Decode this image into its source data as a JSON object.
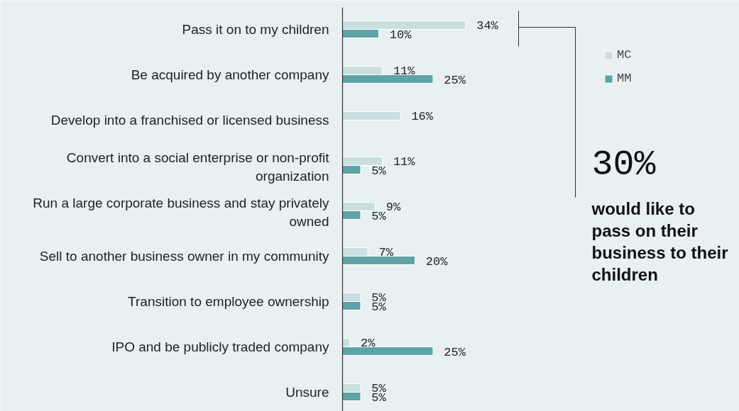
{
  "chart_data": {
    "type": "bar",
    "orientation": "horizontal",
    "categories": [
      "Pass it on to my children",
      "Be acquired by another company",
      "Develop into a franchised or licensed business",
      "Convert into a social enterprise or non-profit\norganization",
      "Run a large corporate business and stay privately\nowned",
      "Sell to another business owner in my community",
      "Transition to employee ownership",
      "IPO and be publicly traded company",
      "Unsure"
    ],
    "series": [
      {
        "name": "MC",
        "color": "#c9dfe0",
        "values": [
          34,
          11,
          16,
          11,
          9,
          7,
          5,
          2,
          5
        ],
        "value_labels": [
          "34%",
          "11%",
          "16%",
          "11%",
          "9%",
          "7%",
          "5%",
          "2%",
          "5%"
        ]
      },
      {
        "name": "MM",
        "color": "#5fa3a7",
        "values": [
          10,
          25,
          null,
          5,
          5,
          20,
          5,
          25,
          5
        ],
        "value_labels": [
          "10%",
          "25%",
          null,
          "5%",
          "5%",
          "20%",
          "5%",
          "25%",
          "5%"
        ]
      }
    ],
    "legend": "top right",
    "annotations": [
      "30%",
      "would like to pass on their business to their children"
    ]
  }
}
